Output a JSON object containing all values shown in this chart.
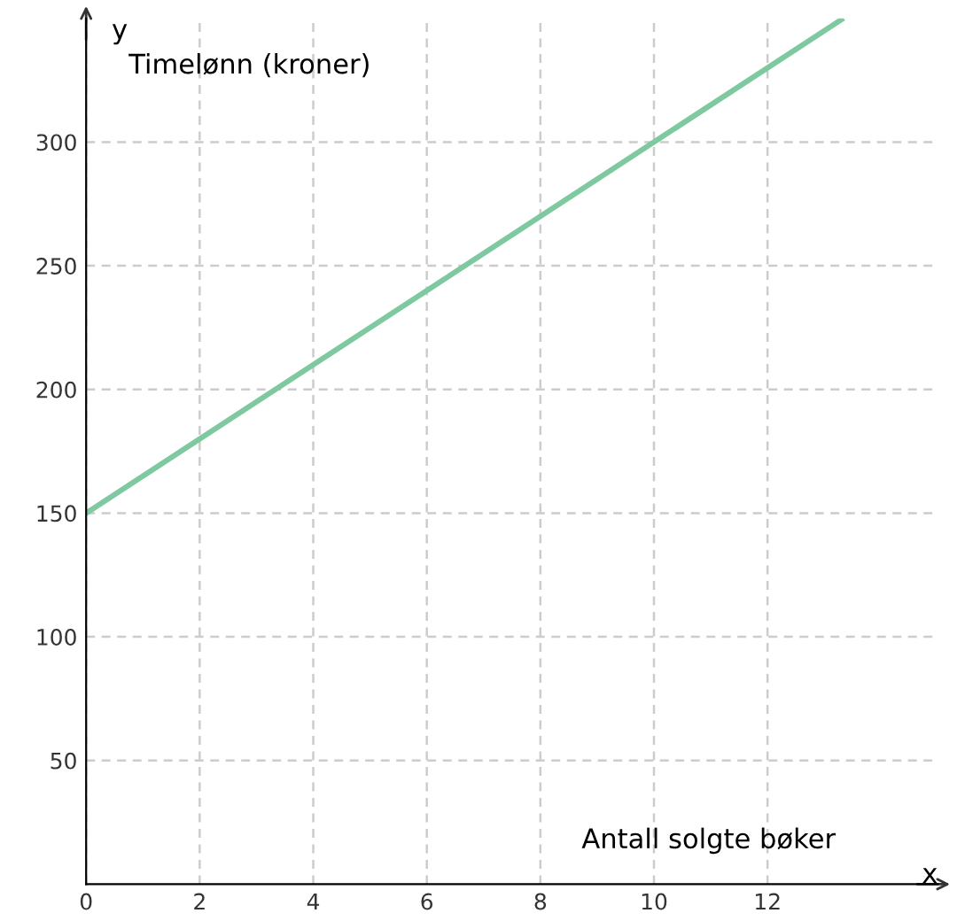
{
  "chart_data": {
    "type": "line",
    "xlabel": "x",
    "ylabel": "y",
    "annotations": [
      "Timelønn (kroner)",
      "Antall solgte bøker"
    ],
    "x": [
      0,
      13.3
    ],
    "series": [
      {
        "color": "#7fc9a0",
        "values": [
          150,
          349.5
        ]
      }
    ],
    "xlim": [
      0,
      15
    ],
    "ylim": [
      0,
      350
    ],
    "xticks": [
      0,
      2,
      4,
      6,
      8,
      10,
      12
    ],
    "yticks": [
      50,
      100,
      150,
      200,
      250,
      300
    ],
    "grid": true,
    "marker": "none",
    "line_style": "solid"
  }
}
